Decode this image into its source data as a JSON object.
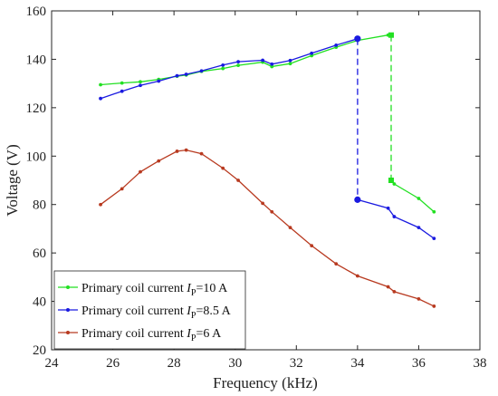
{
  "chart_data": {
    "type": "line",
    "xlabel": "Frequency (kHz)",
    "ylabel": "Voltage (V)",
    "xlim": [
      24,
      38
    ],
    "ylim": [
      20,
      160
    ],
    "xticks": [
      24,
      26,
      28,
      30,
      32,
      34,
      36,
      38
    ],
    "yticks": [
      20,
      40,
      60,
      80,
      100,
      120,
      140,
      160
    ],
    "grid": false,
    "legend_position": "bottom-left",
    "series": [
      {
        "name": "Primary coil current I_P=10 A",
        "legend_main": "Primary coil current ",
        "legend_var": "I",
        "legend_sub": "P",
        "legend_value": "=10 A",
        "color": "#22e022",
        "points": [
          [
            25.6,
            129.5
          ],
          [
            26.3,
            130.2
          ],
          [
            26.9,
            130.7
          ],
          [
            27.5,
            131.7
          ],
          [
            28.1,
            133.0
          ],
          [
            28.4,
            133.5
          ],
          [
            28.9,
            135.0
          ],
          [
            29.6,
            136.2
          ],
          [
            30.1,
            137.5
          ],
          [
            30.9,
            138.8
          ],
          [
            31.2,
            137.0
          ],
          [
            31.8,
            138.2
          ],
          [
            32.5,
            141.5
          ],
          [
            33.3,
            145.0
          ],
          [
            34.0,
            147.8
          ],
          [
            35.0,
            150.0
          ],
          [
            35.1,
            150.0
          ]
        ],
        "drop": [
          [
            35.1,
            150.0
          ],
          [
            35.1,
            90.0
          ]
        ],
        "tail": [
          [
            35.1,
            90.0
          ],
          [
            35.2,
            88.5
          ],
          [
            36.0,
            82.5
          ],
          [
            36.5,
            77.0
          ]
        ]
      },
      {
        "name": "Primary coil current I_P=8.5 A",
        "legend_main": "Primary coil current ",
        "legend_var": "I",
        "legend_sub": "P",
        "legend_value": "=8.5 A",
        "color": "#1a1ae0",
        "points": [
          [
            25.6,
            123.8
          ],
          [
            26.3,
            126.8
          ],
          [
            26.9,
            129.2
          ],
          [
            27.5,
            131.0
          ],
          [
            28.1,
            133.2
          ],
          [
            28.4,
            133.8
          ],
          [
            28.9,
            135.2
          ],
          [
            29.6,
            137.6
          ],
          [
            30.1,
            139.0
          ],
          [
            30.9,
            139.6
          ],
          [
            31.2,
            138.0
          ],
          [
            31.8,
            139.5
          ],
          [
            32.5,
            142.5
          ],
          [
            33.3,
            145.8
          ],
          [
            34.0,
            148.5
          ]
        ],
        "drop": [
          [
            34.0,
            148.5
          ],
          [
            34.0,
            82.0
          ]
        ],
        "tail": [
          [
            34.0,
            82.0
          ],
          [
            35.0,
            78.5
          ],
          [
            35.2,
            75.0
          ],
          [
            36.0,
            70.5
          ],
          [
            36.5,
            66.0
          ]
        ]
      },
      {
        "name": "Primary coil current I_P=6 A",
        "legend_main": "Primary coil current ",
        "legend_var": "I",
        "legend_sub": "P",
        "legend_value": "=6 A",
        "color": "#b83a20",
        "points": [
          [
            25.6,
            80.0
          ],
          [
            26.3,
            86.5
          ],
          [
            26.9,
            93.5
          ],
          [
            27.5,
            98.0
          ],
          [
            28.1,
            102.0
          ],
          [
            28.4,
            102.5
          ],
          [
            28.9,
            101.0
          ],
          [
            29.6,
            95.0
          ],
          [
            30.1,
            90.0
          ],
          [
            30.9,
            80.5
          ],
          [
            31.2,
            77.0
          ],
          [
            31.8,
            70.5
          ],
          [
            32.5,
            63.0
          ],
          [
            33.3,
            55.5
          ],
          [
            34.0,
            50.5
          ],
          [
            35.0,
            46.0
          ],
          [
            35.2,
            44.0
          ],
          [
            36.0,
            41.0
          ],
          [
            36.5,
            38.0
          ]
        ],
        "drop": null,
        "tail": null
      }
    ]
  }
}
